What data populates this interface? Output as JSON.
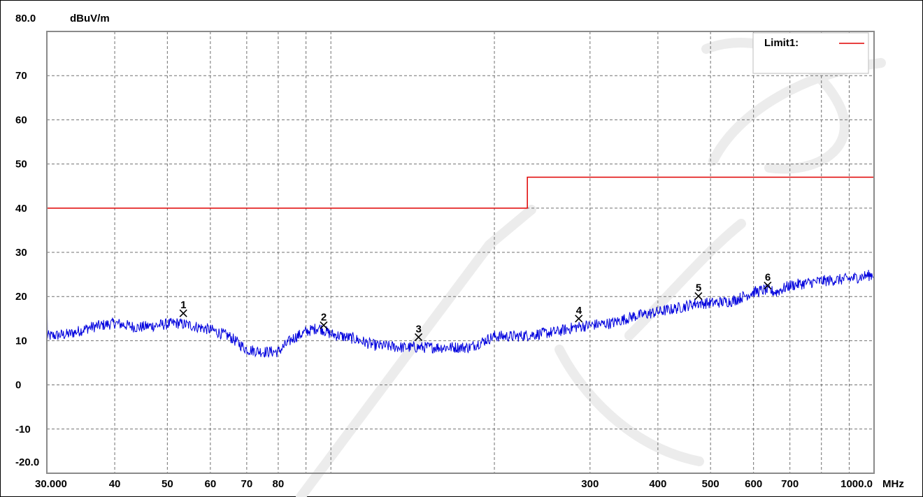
{
  "chart_data": {
    "type": "line",
    "x_scale": "log",
    "xlim": [
      30,
      1000
    ],
    "ylim": [
      -20,
      80
    ],
    "y_unit": "dBuV/m",
    "x_unit": "MHz",
    "y_ticks": [
      {
        "value": 80,
        "label": "80.0"
      },
      {
        "value": 70,
        "label": "70"
      },
      {
        "value": 60,
        "label": "60"
      },
      {
        "value": 50,
        "label": "50"
      },
      {
        "value": 40,
        "label": "40"
      },
      {
        "value": 30,
        "label": "30"
      },
      {
        "value": 20,
        "label": "20"
      },
      {
        "value": 10,
        "label": "10"
      },
      {
        "value": 0,
        "label": "0"
      },
      {
        "value": -10,
        "label": "-10"
      },
      {
        "value": -20,
        "label": "-20.0"
      }
    ],
    "x_ticks": [
      {
        "value": 30,
        "label": "30.000"
      },
      {
        "value": 40,
        "label": "40"
      },
      {
        "value": 50,
        "label": "50"
      },
      {
        "value": 60,
        "label": "60"
      },
      {
        "value": 70,
        "label": "70"
      },
      {
        "value": 80,
        "label": "80"
      },
      {
        "value": 300,
        "label": "300"
      },
      {
        "value": 400,
        "label": "400"
      },
      {
        "value": 500,
        "label": "500"
      },
      {
        "value": 600,
        "label": "600"
      },
      {
        "value": 700,
        "label": "700"
      },
      {
        "value": 1000,
        "label": "1000.0"
      }
    ],
    "x_gridlines": [
      30,
      40,
      50,
      60,
      70,
      80,
      90,
      100,
      200,
      300,
      400,
      500,
      600,
      700,
      800,
      900,
      1000
    ],
    "y_gridlines": [
      70,
      60,
      50,
      40,
      30,
      20,
      10,
      0,
      -10
    ],
    "grid": true,
    "legend": {
      "position": "top-right",
      "entries": [
        {
          "label": "Limit1:",
          "color": "#e00000"
        }
      ]
    },
    "limit": {
      "name": "Limit1:",
      "color": "#e00000",
      "segments": [
        {
          "x": [
            30,
            230
          ],
          "y": 40
        },
        {
          "x": [
            230,
            1000
          ],
          "y": 47
        }
      ]
    },
    "trace": {
      "color": "#0000dd",
      "x": [
        30,
        33,
        36,
        40,
        44,
        48,
        52,
        55,
        60,
        65,
        70,
        75,
        80,
        85,
        90,
        95,
        100,
        110,
        120,
        135,
        150,
        165,
        180,
        200,
        220,
        240,
        260,
        280,
        300,
        330,
        360,
        400,
        440,
        470,
        500,
        550,
        600,
        630,
        660,
        700,
        800,
        900,
        1000
      ],
      "y": [
        11,
        11.5,
        13,
        14,
        13,
        13.5,
        14,
        13.5,
        12.5,
        11,
        8,
        7.5,
        7.5,
        10.5,
        12,
        13,
        11.5,
        10.5,
        9,
        8.5,
        8.5,
        8.5,
        8.5,
        11,
        11,
        11.5,
        12,
        13,
        13.5,
        14,
        15.5,
        16.5,
        17.5,
        18.5,
        18.5,
        19,
        21,
        21.5,
        21,
        22.5,
        23.5,
        24,
        25
      ]
    },
    "markers": [
      {
        "label": "1",
        "freq": 53.5,
        "level": 16.2
      },
      {
        "label": "2",
        "freq": 97.0,
        "level": 13.5
      },
      {
        "label": "3",
        "freq": 145.0,
        "level": 10.8
      },
      {
        "label": "4",
        "freq": 286.0,
        "level": 15.0
      },
      {
        "label": "5",
        "freq": 475.0,
        "level": 20.1
      },
      {
        "label": "6",
        "freq": 637.0,
        "level": 22.5
      }
    ]
  }
}
